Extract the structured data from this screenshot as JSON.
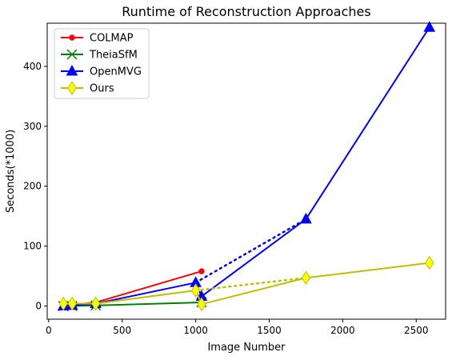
{
  "chart_data": {
    "type": "line",
    "title": "Runtime of Reconstruction Approaches",
    "xlabel": "Image Number",
    "ylabel": "Seconds(*1000)",
    "xlim": [
      -10,
      2700
    ],
    "ylim": [
      -22,
      472
    ],
    "xticks": [
      0,
      500,
      1000,
      1500,
      2000,
      2500
    ],
    "yticks": [
      0,
      100,
      200,
      300,
      400
    ],
    "grid": false,
    "legend_position": "top-left",
    "series": [
      {
        "name": "COLMAP",
        "color": "#ff0000",
        "marker": "dot",
        "x": [
          100,
          160,
          320,
          1040
        ],
        "y": [
          1,
          2,
          6,
          58
        ],
        "dotted": []
      },
      {
        "name": "TheiaSfM",
        "color": "#008000",
        "marker": "x",
        "x": [
          100,
          160,
          320,
          1040
        ],
        "y": [
          0,
          0,
          1,
          6
        ],
        "dotted": []
      },
      {
        "name": "OpenMVG",
        "color": "#0000ff",
        "marker": "triangle",
        "x": [
          100,
          160,
          320,
          1000,
          1040,
          1750,
          2590
        ],
        "y": [
          0,
          1,
          4,
          39,
          16,
          145,
          465
        ],
        "dotted": [
          {
            "x": [
              1000,
              1750
            ],
            "y": [
              39,
              145
            ]
          }
        ]
      },
      {
        "name": "Ours",
        "color": "#bfbf00",
        "marker": "diamond",
        "x": [
          100,
          160,
          320,
          1000,
          1040,
          1750,
          2590
        ],
        "y": [
          4,
          4,
          4,
          26,
          3,
          47,
          72
        ],
        "dotted": [
          {
            "x": [
              1000,
              1750
            ],
            "y": [
              26,
              47
            ]
          }
        ]
      }
    ]
  }
}
